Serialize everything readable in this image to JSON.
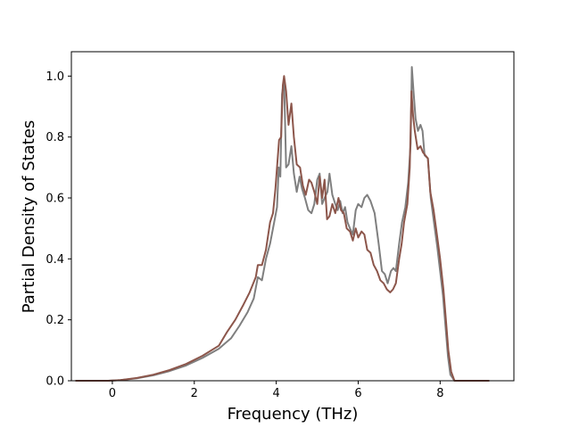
{
  "chart_data": {
    "type": "line",
    "title": "",
    "xlabel": "Frequency (THz)",
    "ylabel": "Partial Density of States",
    "xlim": [
      -1.0,
      9.8
    ],
    "ylim": [
      0.0,
      1.08
    ],
    "xticks": [
      0,
      2,
      4,
      6,
      8
    ],
    "yticks": [
      0.0,
      0.2,
      0.4,
      0.6,
      0.8,
      1.0
    ],
    "xtick_labels": [
      "0",
      "2",
      "4",
      "6",
      "8"
    ],
    "ytick_labels": [
      "0.0",
      "0.2",
      "0.4",
      "0.6",
      "0.8",
      "1.0"
    ],
    "grid": false,
    "legend": "none",
    "series": [
      {
        "color": "#7f7f7f",
        "points": [
          [
            -0.9,
            0.0
          ],
          [
            -0.1,
            0.0
          ],
          [
            0.2,
            0.002
          ],
          [
            0.6,
            0.008
          ],
          [
            1.0,
            0.018
          ],
          [
            1.4,
            0.032
          ],
          [
            1.8,
            0.05
          ],
          [
            2.2,
            0.075
          ],
          [
            2.6,
            0.105
          ],
          [
            2.9,
            0.14
          ],
          [
            3.1,
            0.18
          ],
          [
            3.3,
            0.225
          ],
          [
            3.45,
            0.27
          ],
          [
            3.55,
            0.34
          ],
          [
            3.65,
            0.33
          ],
          [
            3.75,
            0.4
          ],
          [
            3.85,
            0.45
          ],
          [
            3.95,
            0.52
          ],
          [
            4.02,
            0.57
          ],
          [
            4.06,
            0.7
          ],
          [
            4.1,
            0.67
          ],
          [
            4.14,
            0.94
          ],
          [
            4.19,
            0.99
          ],
          [
            4.24,
            0.7
          ],
          [
            4.3,
            0.71
          ],
          [
            4.37,
            0.77
          ],
          [
            4.43,
            0.68
          ],
          [
            4.5,
            0.62
          ],
          [
            4.57,
            0.67
          ],
          [
            4.63,
            0.63
          ],
          [
            4.7,
            0.6
          ],
          [
            4.78,
            0.56
          ],
          [
            4.86,
            0.55
          ],
          [
            4.93,
            0.58
          ],
          [
            5.0,
            0.66
          ],
          [
            5.06,
            0.68
          ],
          [
            5.12,
            0.58
          ],
          [
            5.18,
            0.6
          ],
          [
            5.25,
            0.62
          ],
          [
            5.3,
            0.68
          ],
          [
            5.37,
            0.61
          ],
          [
            5.44,
            0.58
          ],
          [
            5.5,
            0.56
          ],
          [
            5.56,
            0.59
          ],
          [
            5.62,
            0.55
          ],
          [
            5.68,
            0.57
          ],
          [
            5.74,
            0.52
          ],
          [
            5.8,
            0.5
          ],
          [
            5.87,
            0.48
          ],
          [
            5.94,
            0.56
          ],
          [
            6.0,
            0.58
          ],
          [
            6.08,
            0.57
          ],
          [
            6.15,
            0.6
          ],
          [
            6.22,
            0.61
          ],
          [
            6.3,
            0.59
          ],
          [
            6.4,
            0.55
          ],
          [
            6.5,
            0.45
          ],
          [
            6.58,
            0.36
          ],
          [
            6.65,
            0.35
          ],
          [
            6.72,
            0.32
          ],
          [
            6.8,
            0.36
          ],
          [
            6.86,
            0.37
          ],
          [
            6.92,
            0.36
          ],
          [
            7.0,
            0.45
          ],
          [
            7.07,
            0.52
          ],
          [
            7.15,
            0.57
          ],
          [
            7.22,
            0.65
          ],
          [
            7.28,
            0.78
          ],
          [
            7.31,
            1.03
          ],
          [
            7.35,
            0.95
          ],
          [
            7.4,
            0.86
          ],
          [
            7.46,
            0.82
          ],
          [
            7.52,
            0.84
          ],
          [
            7.57,
            0.82
          ],
          [
            7.62,
            0.74
          ],
          [
            7.7,
            0.73
          ],
          [
            7.77,
            0.6
          ],
          [
            7.85,
            0.52
          ],
          [
            7.93,
            0.44
          ],
          [
            8.0,
            0.36
          ],
          [
            8.07,
            0.28
          ],
          [
            8.13,
            0.18
          ],
          [
            8.19,
            0.08
          ],
          [
            8.25,
            0.02
          ],
          [
            8.35,
            0.0
          ],
          [
            9.2,
            0.0
          ]
        ]
      },
      {
        "color": "#8c564b",
        "points": [
          [
            -0.9,
            0.0
          ],
          [
            -0.1,
            0.0
          ],
          [
            0.2,
            0.002
          ],
          [
            0.6,
            0.009
          ],
          [
            1.0,
            0.02
          ],
          [
            1.4,
            0.035
          ],
          [
            1.8,
            0.055
          ],
          [
            2.2,
            0.082
          ],
          [
            2.6,
            0.115
          ],
          [
            2.8,
            0.16
          ],
          [
            3.0,
            0.2
          ],
          [
            3.2,
            0.25
          ],
          [
            3.35,
            0.29
          ],
          [
            3.5,
            0.34
          ],
          [
            3.55,
            0.38
          ],
          [
            3.65,
            0.38
          ],
          [
            3.75,
            0.43
          ],
          [
            3.85,
            0.52
          ],
          [
            3.92,
            0.55
          ],
          [
            3.98,
            0.63
          ],
          [
            4.03,
            0.72
          ],
          [
            4.07,
            0.79
          ],
          [
            4.12,
            0.8
          ],
          [
            4.16,
            0.97
          ],
          [
            4.19,
            1.0
          ],
          [
            4.24,
            0.95
          ],
          [
            4.3,
            0.84
          ],
          [
            4.37,
            0.91
          ],
          [
            4.43,
            0.8
          ],
          [
            4.5,
            0.71
          ],
          [
            4.58,
            0.7
          ],
          [
            4.65,
            0.64
          ],
          [
            4.72,
            0.61
          ],
          [
            4.8,
            0.66
          ],
          [
            4.86,
            0.65
          ],
          [
            4.93,
            0.62
          ],
          [
            5.0,
            0.58
          ],
          [
            5.06,
            0.67
          ],
          [
            5.12,
            0.6
          ],
          [
            5.18,
            0.66
          ],
          [
            5.24,
            0.53
          ],
          [
            5.3,
            0.54
          ],
          [
            5.37,
            0.58
          ],
          [
            5.44,
            0.55
          ],
          [
            5.52,
            0.6
          ],
          [
            5.58,
            0.56
          ],
          [
            5.65,
            0.55
          ],
          [
            5.72,
            0.5
          ],
          [
            5.8,
            0.49
          ],
          [
            5.87,
            0.46
          ],
          [
            5.94,
            0.5
          ],
          [
            6.0,
            0.47
          ],
          [
            6.08,
            0.49
          ],
          [
            6.15,
            0.48
          ],
          [
            6.22,
            0.43
          ],
          [
            6.3,
            0.42
          ],
          [
            6.38,
            0.38
          ],
          [
            6.46,
            0.36
          ],
          [
            6.54,
            0.33
          ],
          [
            6.62,
            0.32
          ],
          [
            6.7,
            0.3
          ],
          [
            6.78,
            0.29
          ],
          [
            6.85,
            0.3
          ],
          [
            6.92,
            0.32
          ],
          [
            7.0,
            0.4
          ],
          [
            7.06,
            0.45
          ],
          [
            7.12,
            0.52
          ],
          [
            7.2,
            0.58
          ],
          [
            7.26,
            0.7
          ],
          [
            7.3,
            0.95
          ],
          [
            7.34,
            0.87
          ],
          [
            7.38,
            0.82
          ],
          [
            7.45,
            0.76
          ],
          [
            7.52,
            0.77
          ],
          [
            7.58,
            0.75
          ],
          [
            7.64,
            0.74
          ],
          [
            7.7,
            0.73
          ],
          [
            7.76,
            0.62
          ],
          [
            7.84,
            0.56
          ],
          [
            7.92,
            0.48
          ],
          [
            8.0,
            0.4
          ],
          [
            8.08,
            0.3
          ],
          [
            8.14,
            0.2
          ],
          [
            8.2,
            0.1
          ],
          [
            8.27,
            0.03
          ],
          [
            8.35,
            0.0
          ],
          [
            9.2,
            0.0
          ]
        ]
      }
    ]
  }
}
